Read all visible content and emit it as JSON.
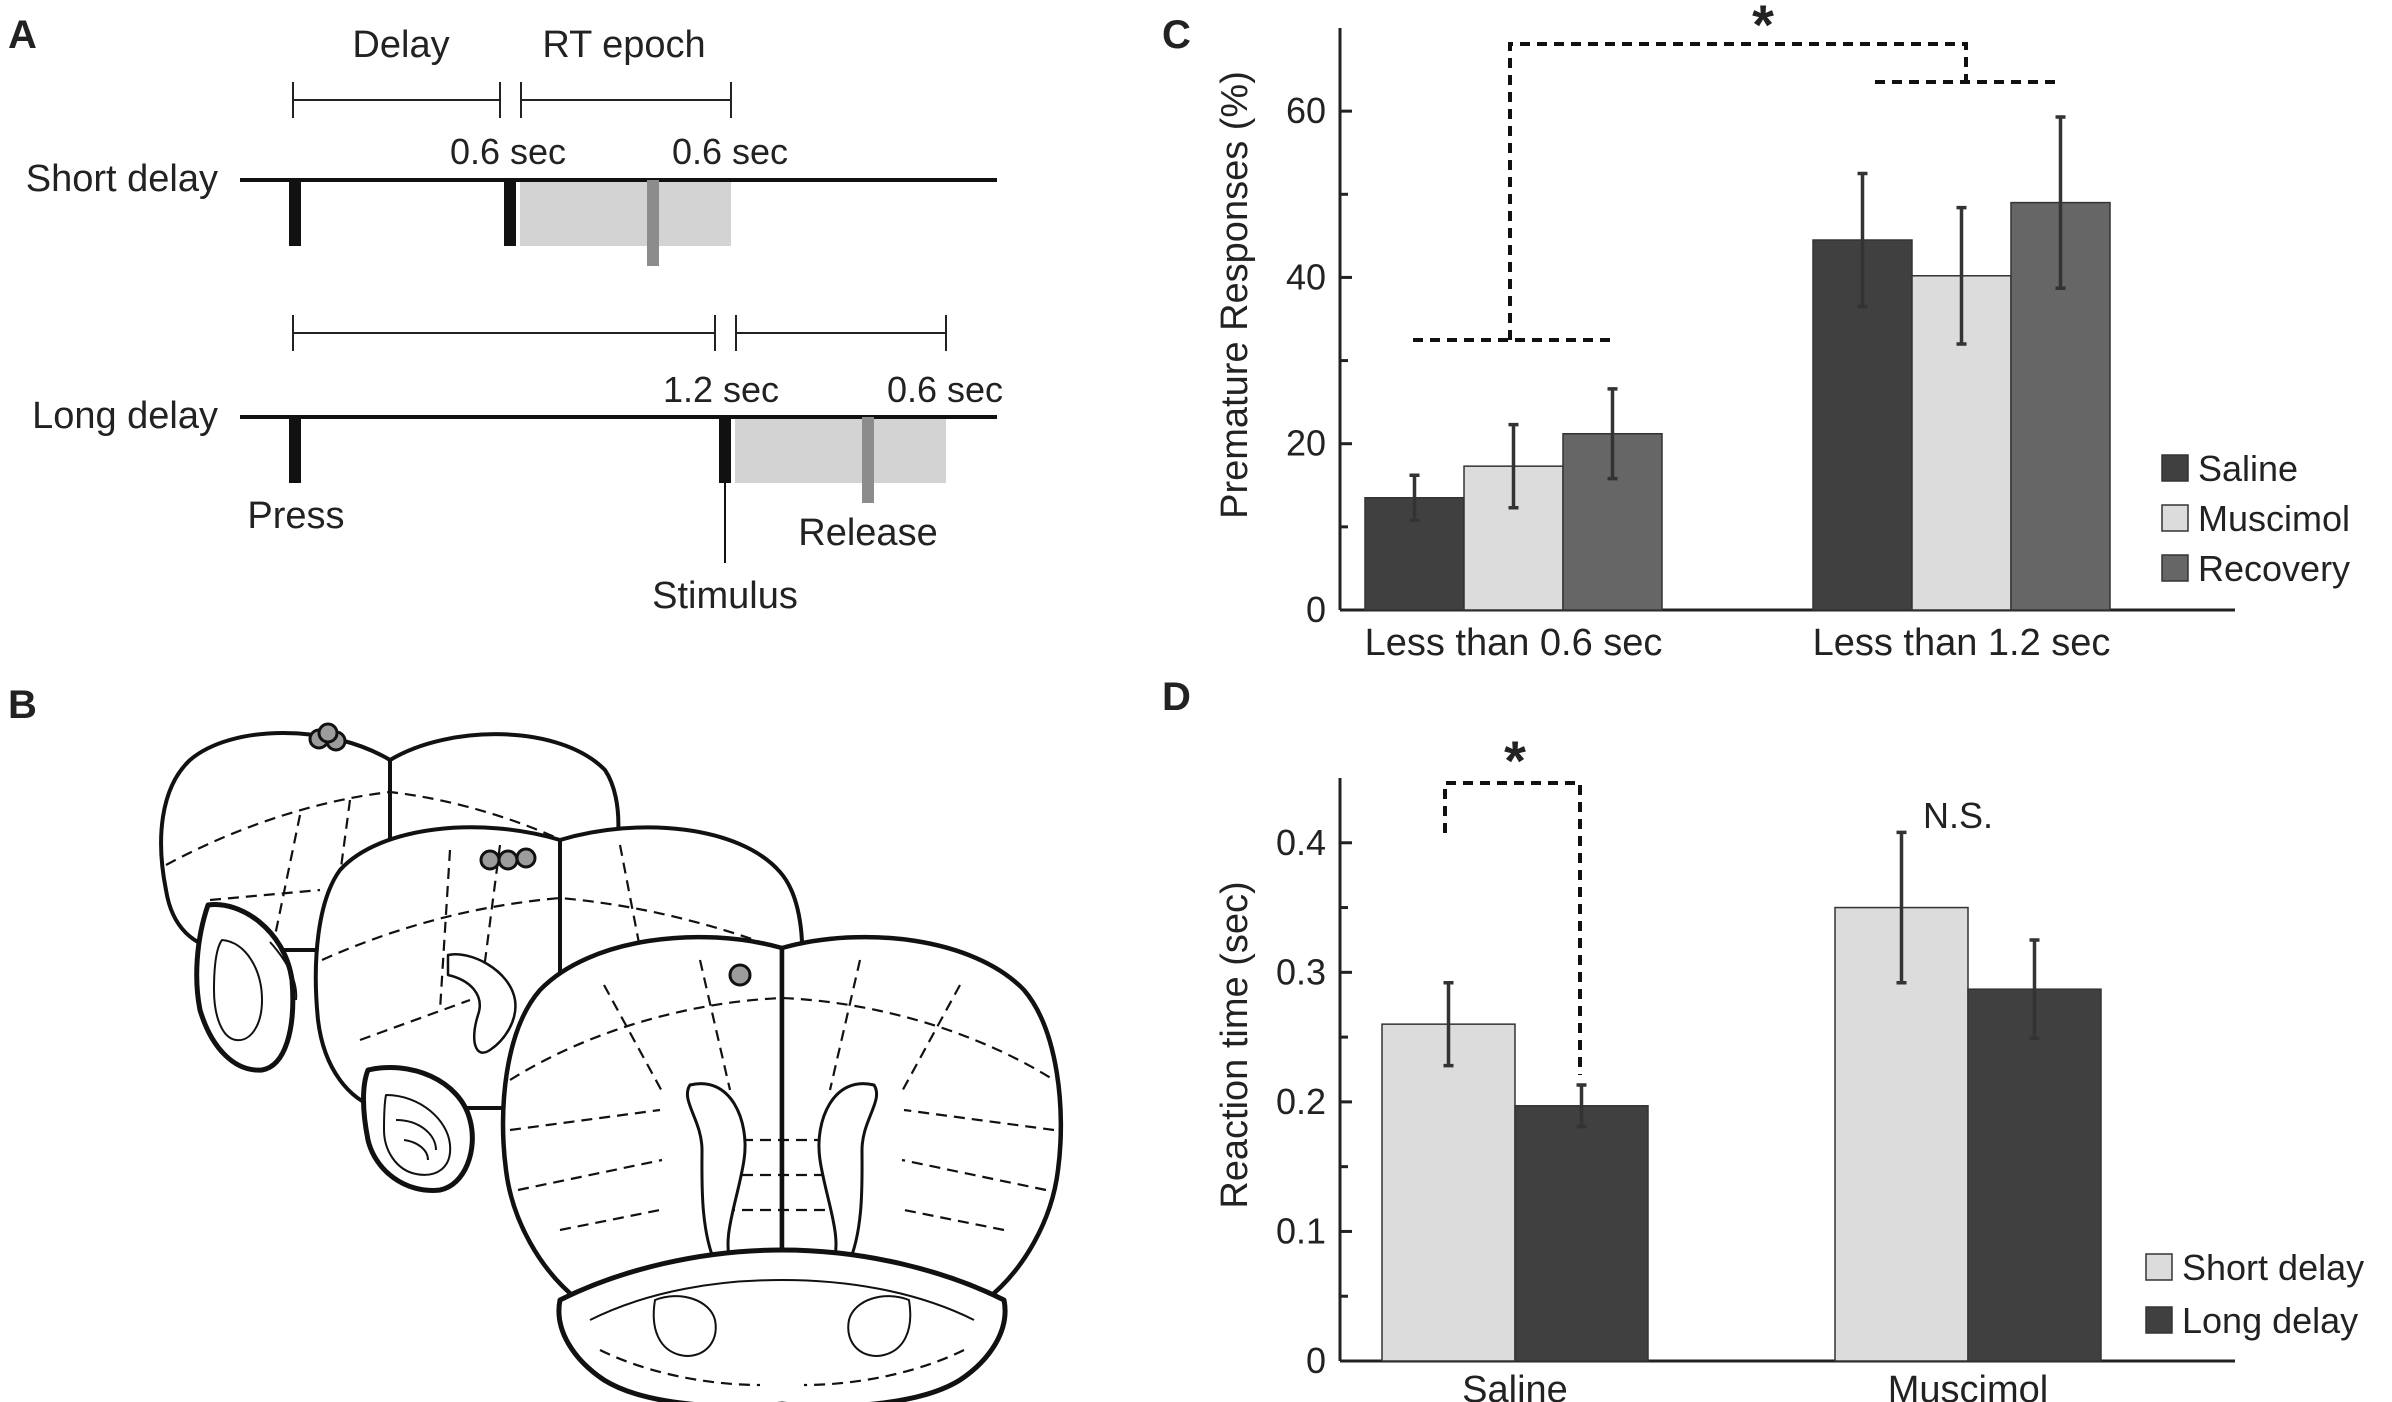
{
  "panels": {
    "a": "A",
    "b": "B",
    "c": "C",
    "d": "D"
  },
  "panel_a": {
    "delay_label": "Delay",
    "rt_label": "RT epoch",
    "short_label": "Short delay",
    "long_label": "Long delay",
    "short_delay_value": "0.6 sec",
    "short_rt_value": "0.6 sec",
    "long_delay_value": "1.2 sec",
    "long_rt_value": "0.6 sec",
    "press_label": "Press",
    "stimulus_label": "Stimulus",
    "release_label": "Release"
  },
  "colors": {
    "saline": "#404040",
    "muscimol": "#dcdcdc",
    "recovery": "#666666",
    "epoch_fill": "#d3d3d3",
    "release_mark": "#8c8c8c"
  },
  "chart_data": [
    {
      "type": "bar",
      "title": "",
      "xlabel": "",
      "ylabel": "Premature Responses (%)",
      "ylim": [
        0,
        70
      ],
      "yticks": [
        0,
        20,
        40,
        60
      ],
      "categories": [
        "Less than 0.6 sec",
        "Less than 1.2 sec"
      ],
      "series": [
        {
          "name": "Saline",
          "values": [
            13.5,
            44.5
          ],
          "errors": [
            2.7,
            8.0
          ]
        },
        {
          "name": "Muscimol",
          "values": [
            17.3,
            40.2
          ],
          "errors": [
            5.0,
            8.2
          ]
        },
        {
          "name": "Recovery",
          "values": [
            21.2,
            49.0
          ],
          "errors": [
            5.4,
            10.3
          ]
        }
      ],
      "legend": "right",
      "annotation": "*"
    },
    {
      "type": "bar",
      "title": "",
      "xlabel": "",
      "ylabel": "Reaction time (sec)",
      "ylim": [
        0,
        0.45
      ],
      "yticks": [
        0,
        0.1,
        0.2,
        0.3,
        0.4
      ],
      "categories": [
        "Saline",
        "Muscimol"
      ],
      "series": [
        {
          "name": "Short delay",
          "values": [
            0.26,
            0.35
          ],
          "errors": [
            0.032,
            0.058
          ]
        },
        {
          "name": "Long delay",
          "values": [
            0.197,
            0.287
          ],
          "errors": [
            0.016,
            0.038
          ]
        }
      ],
      "legend": "bottom-right",
      "annotations": [
        "*",
        "N.S."
      ]
    }
  ]
}
